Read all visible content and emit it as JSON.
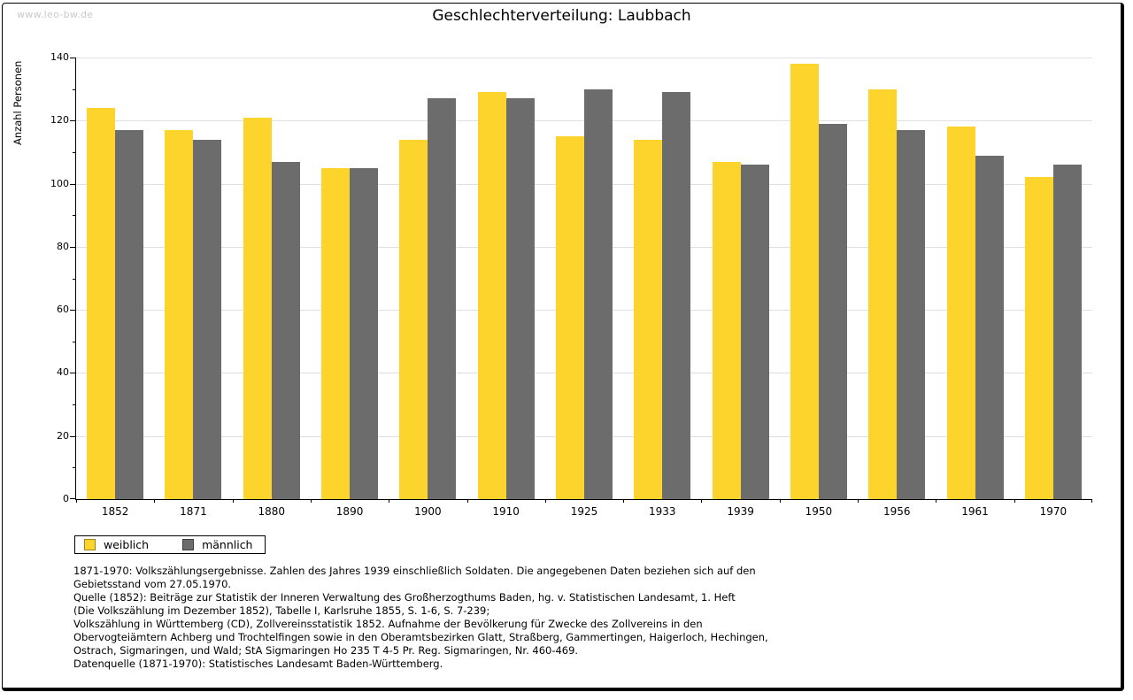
{
  "watermark": "www.leo-bw.de",
  "chart_data": {
    "type": "bar",
    "title": "Geschlechterverteilung: Laubbach",
    "xlabel": "",
    "ylabel": "Anzahl Personen",
    "categories": [
      "1852",
      "1871",
      "1880",
      "1890",
      "1900",
      "1910",
      "1925",
      "1933",
      "1939",
      "1950",
      "1956",
      "1961",
      "1970"
    ],
    "series": [
      {
        "name": "weiblich",
        "color": "#FCD42C",
        "values": [
          124,
          117,
          121,
          105,
          114,
          129,
          115,
          114,
          107,
          138,
          130,
          118,
          102
        ]
      },
      {
        "name": "männlich",
        "color": "#6C6C6C",
        "values": [
          117,
          114,
          107,
          105,
          127,
          127,
          130,
          129,
          106,
          119,
          117,
          109,
          106
        ]
      }
    ],
    "ylim": [
      0,
      140
    ],
    "yticks": [
      0,
      20,
      40,
      60,
      80,
      100,
      120,
      140
    ],
    "yticks_minor": [
      10,
      30,
      50,
      70,
      90,
      110,
      130
    ],
    "grid": true,
    "gridline_color": "#e0e0e0",
    "legend_position": "bottom-left"
  },
  "notes": {
    "lines": [
      "1871-1970: Volkszählungsergebnisse. Zahlen des Jahres 1939 einschließlich Soldaten. Die angegebenen Daten beziehen sich auf den",
      "Gebietsstand vom 27.05.1970.",
      "Quelle (1852): Beiträge zur Statistik der Inneren Verwaltung des Großherzogthums Baden, hg. v. Statistischen Landesamt, 1. Heft",
      "(Die Volkszählung im Dezember 1852), Tabelle I, Karlsruhe 1855, S. 1-6, S. 7-239;",
      "Volkszählung in Württemberg (CD), Zollvereinsstatistik 1852. Aufnahme der Bevölkerung für Zwecke des Zollvereins in den",
      "Obervogteiämtern Achberg und Trochtelfingen sowie in den Oberamtsbezirken Glatt, Straßberg, Gammertingen, Haigerloch, Hechingen,",
      "Ostrach, Sigmaringen, und Wald; StA Sigmaringen Ho 235 T 4-5 Pr. Reg. Sigmaringen, Nr. 460-469."
    ],
    "datasource": "Datenquelle (1871-1970): Statistisches Landesamt Baden-Württemberg."
  }
}
